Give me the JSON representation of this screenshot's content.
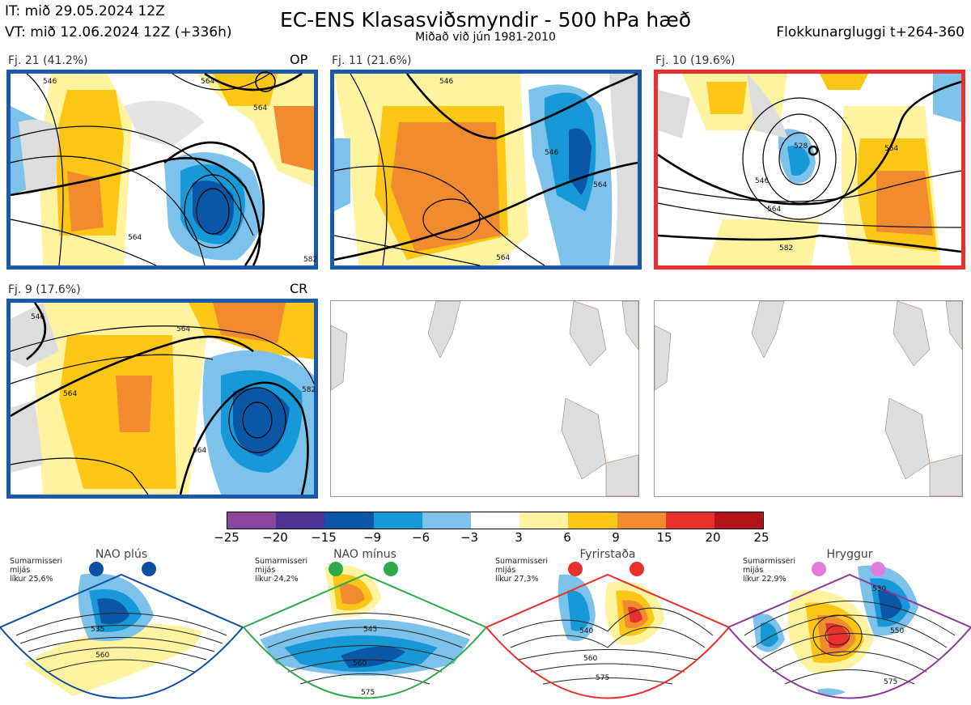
{
  "header": {
    "it_line": "IT: mið 29.05.2024 12Z",
    "vt_line": "VT: mið 12.06.2024 12Z  (+336h)",
    "title": "EC-ENS Klasasviðsmyndir - 500 hPa hæð",
    "subtitle": "Miðað við jún 1981-2010",
    "window": "Flokkunargluggi t+264-360"
  },
  "clusters": [
    {
      "label": "Fj. 21 (41.2%)",
      "tag": "OP",
      "frame_color": "#1a5aa8",
      "contours": [
        "546",
        "564",
        "564",
        "564",
        "582"
      ]
    },
    {
      "label": "Fj. 11 (21.6%)",
      "tag": "",
      "frame_color": "#1a5aa8",
      "contours": [
        "546",
        "546",
        "564",
        "564"
      ]
    },
    {
      "label": "Fj. 10 (19.6%)",
      "tag": "",
      "frame_color": "#e8302c",
      "contours": [
        "528",
        "546",
        "564",
        "564",
        "582"
      ]
    },
    {
      "label": "Fj. 9 (17.6%)",
      "tag": "CR",
      "frame_color": "#1a5aa8",
      "contours": [
        "546",
        "564",
        "564",
        "564",
        "582"
      ]
    }
  ],
  "colorbar": {
    "ticks": [
      "−25",
      "−20",
      "−15",
      "−9",
      "−6",
      "−3",
      "3",
      "6",
      "9",
      "15",
      "20",
      "25"
    ],
    "colors": [
      "#8b479b",
      "#4a3393",
      "#0a57a6",
      "#1699d6",
      "#7dc2ea",
      "#ffffff",
      "#fff3a0",
      "#fcc617",
      "#f28a30",
      "#e8302c",
      "#b3141a"
    ]
  },
  "regimes": [
    {
      "name": "NAO plús",
      "note_line1": "Sumarmisseri",
      "note_line2": "mijás",
      "note_line3": "líkur 25,6%",
      "dot_color": "#0d4fa0",
      "frame_color": "#0d4fa0",
      "labels": [
        "535",
        "560"
      ]
    },
    {
      "name": "NAO mínus",
      "note_line1": "Sumarmisseri",
      "note_line2": "mijás",
      "note_line3": "líkur 24,2%",
      "dot_color": "#2eaa4a",
      "frame_color": "#2eaa4a",
      "labels": [
        "545",
        "560",
        "575"
      ]
    },
    {
      "name": "Fyrirstaða",
      "note_line1": "Sumarmisseri",
      "note_line2": "mijás",
      "note_line3": "líkur 27,3%",
      "dot_color": "#e8302c",
      "frame_color": "#e8302c",
      "labels": [
        "540",
        "560",
        "575"
      ]
    },
    {
      "name": "Hryggur",
      "note_line1": "Sumarmisseri",
      "note_line2": "mijás",
      "note_line3": "líkur 22,9%",
      "dot_color": "#e07be0",
      "frame_color": "#8b3a9b",
      "labels": [
        "530",
        "550",
        "575"
      ]
    }
  ]
}
